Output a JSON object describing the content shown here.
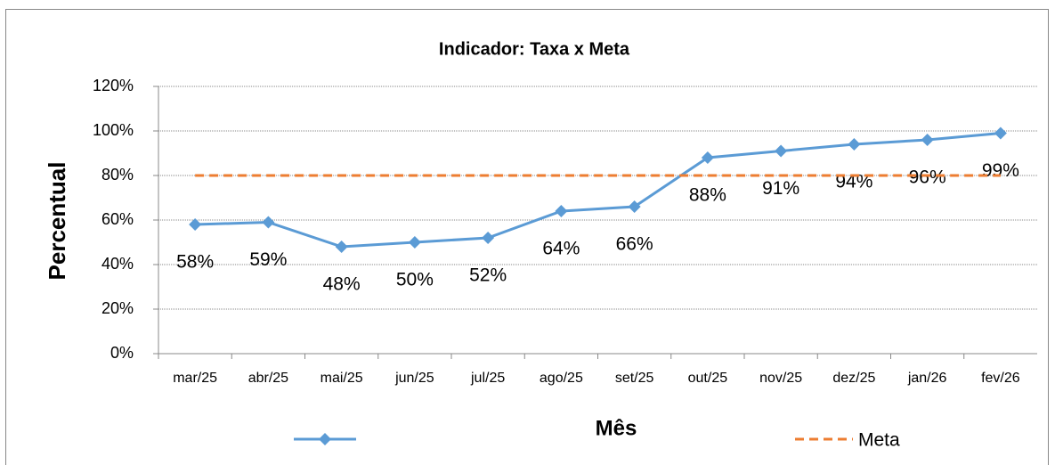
{
  "chart_data": {
    "type": "line",
    "title": "Indicador: Taxa x Meta",
    "y_label": "Percentual",
    "x_label": "Mês",
    "categories": [
      "mar/25",
      "abr/25",
      "mai/25",
      "jun/25",
      "jul/25",
      "ago/25",
      "set/25",
      "out/25",
      "nov/25",
      "dez/25",
      "jan/26",
      "fev/26"
    ],
    "series": [
      {
        "color": "#5b9bd5",
        "values": [
          58,
          59,
          48,
          50,
          52,
          64,
          66,
          88,
          91,
          94,
          96,
          99
        ],
        "value_labels": [
          "58%",
          "59%",
          "48%",
          "50%",
          "52%",
          "64%",
          "66%",
          "88%",
          "91%",
          "94%",
          "96%",
          "99%"
        ]
      },
      {
        "name": "Meta",
        "color": "#ed7d31",
        "values": [
          80,
          80,
          80,
          80,
          80,
          80,
          80,
          80,
          80,
          80,
          80,
          80
        ]
      }
    ],
    "ylim": [
      0,
      120
    ],
    "yticks": [
      {
        "value": 0,
        "label": "0%"
      },
      {
        "value": 20,
        "label": "20%"
      },
      {
        "value": 40,
        "label": "40%"
      },
      {
        "value": 60,
        "label": "60%"
      },
      {
        "value": 80,
        "label": "80%"
      },
      {
        "value": 100,
        "label": "100%"
      },
      {
        "value": 120,
        "label": "120%"
      }
    ],
    "grid": true
  }
}
